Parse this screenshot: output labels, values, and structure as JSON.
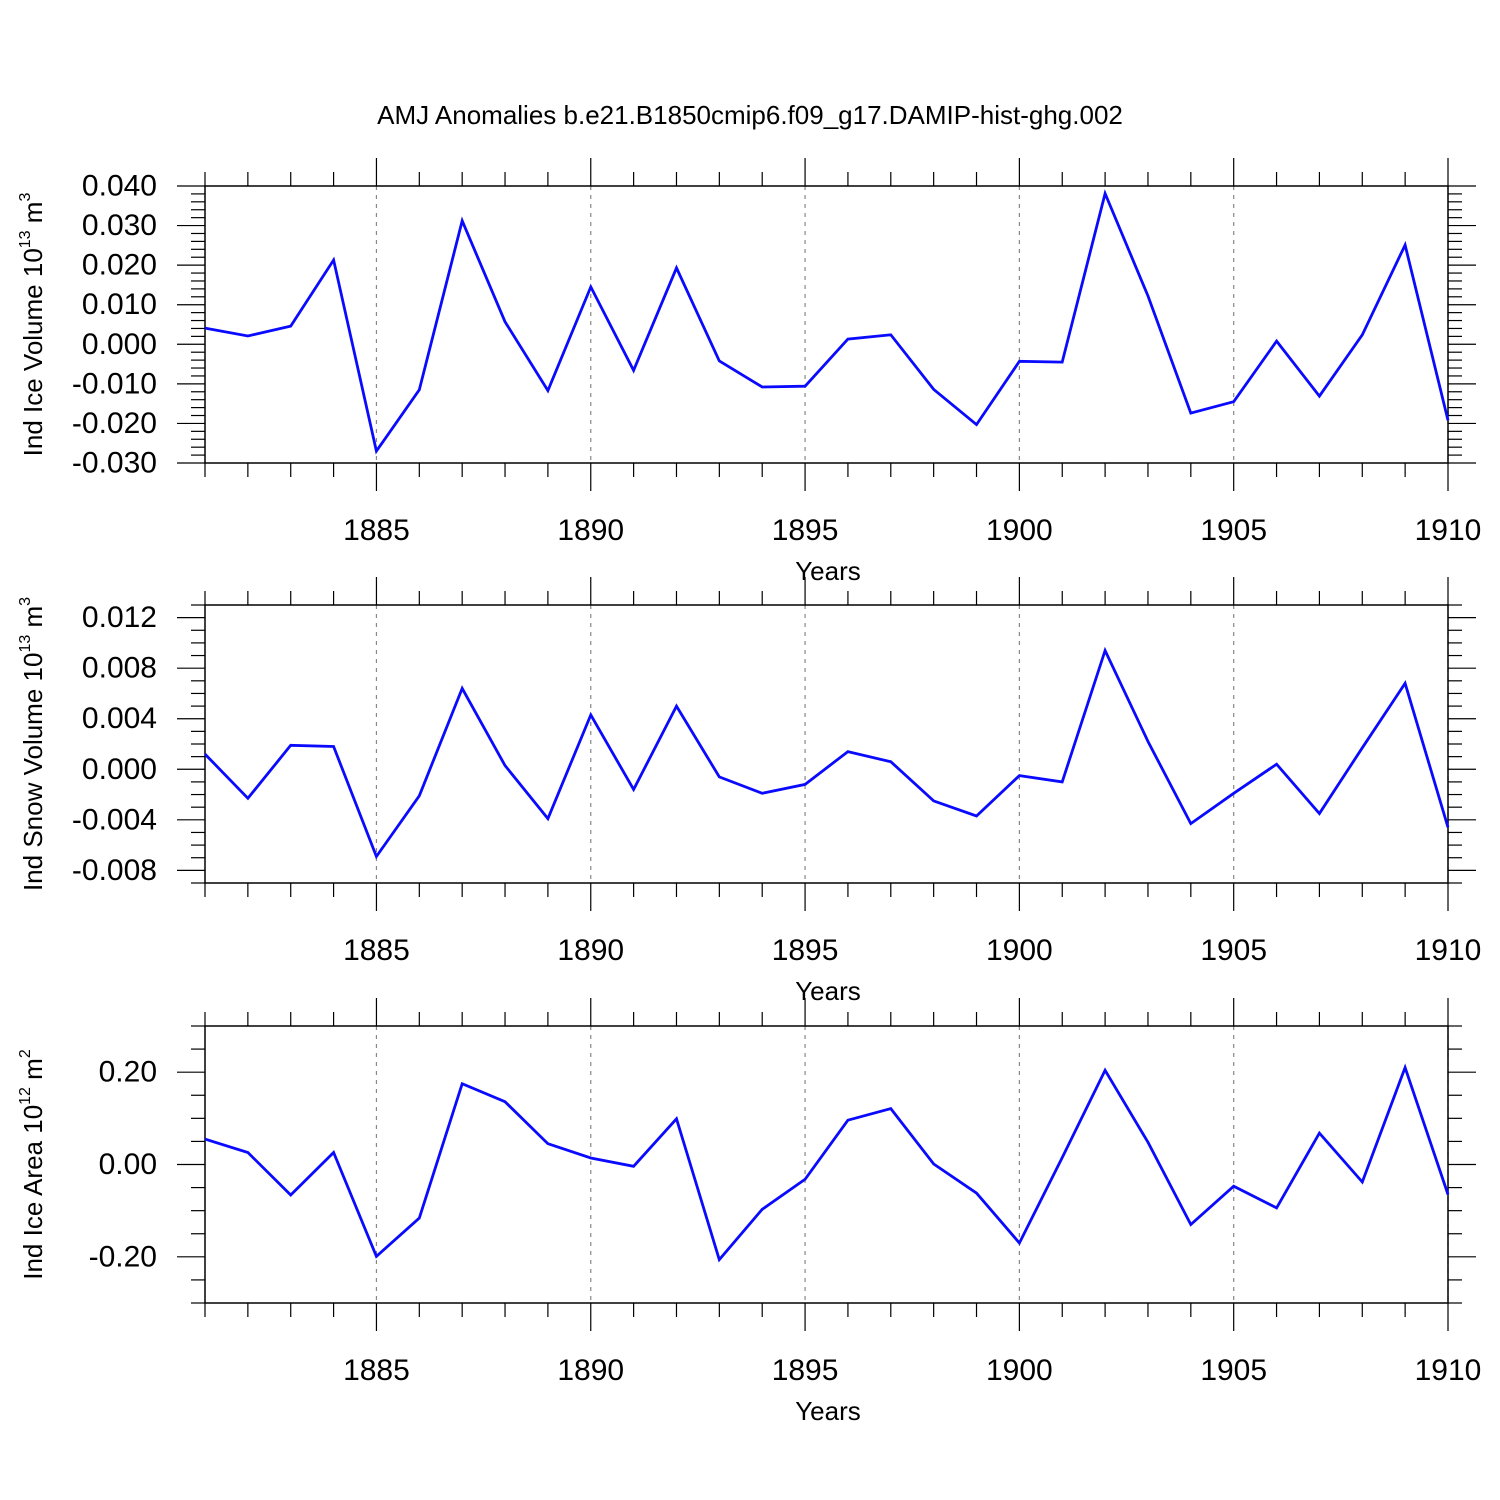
{
  "title": "AMJ Anomalies b.e21.B1850cmip6.f09_g17.DAMIP-hist-ghg.002",
  "colors": {
    "line": "#0a0aff",
    "axis": "#000000",
    "grid": "#888888"
  },
  "chart_data": [
    {
      "type": "line",
      "ylabel": {
        "prefix": "Ind Ice Volume 10",
        "exp": "13",
        "unit": " m",
        "unit_exp": "3"
      },
      "xlabel": "Years",
      "xlim": [
        1881,
        1910
      ],
      "ylim": [
        -0.03,
        0.04
      ],
      "yticks": [
        -0.03,
        -0.02,
        -0.01,
        0.0,
        0.01,
        0.02,
        0.03,
        0.04
      ],
      "ytick_labels": [
        "-0.030",
        "-0.020",
        "-0.010",
        "0.000",
        "0.010",
        "0.020",
        "0.030",
        "0.040"
      ],
      "yminor_step": 0.002,
      "xticks": [
        1885,
        1890,
        1895,
        1900,
        1905,
        1910
      ],
      "xtick_labels": [
        "1885",
        "1890",
        "1895",
        "1900",
        "1905",
        "1910"
      ],
      "x": [
        1881,
        1882,
        1883,
        1884,
        1885,
        1886,
        1887,
        1888,
        1889,
        1890,
        1891,
        1892,
        1893,
        1894,
        1895,
        1896,
        1897,
        1898,
        1899,
        1900,
        1901,
        1902,
        1903,
        1904,
        1905,
        1906,
        1907,
        1908,
        1909,
        1910
      ],
      "values": [
        0.0041,
        0.0021,
        0.0046,
        0.0213,
        -0.027,
        -0.0115,
        0.0312,
        0.0057,
        -0.0117,
        0.0145,
        -0.0066,
        0.0193,
        -0.0042,
        -0.0108,
        -0.0106,
        0.0013,
        0.0024,
        -0.0114,
        -0.0203,
        -0.0043,
        -0.0045,
        0.0381,
        0.0122,
        -0.0174,
        -0.0145,
        0.0008,
        -0.0131,
        0.0024,
        0.0251,
        -0.0192
      ]
    },
    {
      "type": "line",
      "ylabel": {
        "prefix": "Ind Snow Volume 10",
        "exp": "13",
        "unit": " m",
        "unit_exp": "3"
      },
      "xlabel": "Years",
      "xlim": [
        1881,
        1910
      ],
      "ylim": [
        -0.009,
        0.013
      ],
      "yticks": [
        -0.008,
        -0.004,
        0.0,
        0.004,
        0.008,
        0.012
      ],
      "ytick_labels": [
        "-0.008",
        "-0.004",
        "0.000",
        "0.004",
        "0.008",
        "0.012"
      ],
      "yminor_step": 0.001,
      "xticks": [
        1885,
        1890,
        1895,
        1900,
        1905,
        1910
      ],
      "xtick_labels": [
        "1885",
        "1890",
        "1895",
        "1900",
        "1905",
        "1910"
      ],
      "x": [
        1881,
        1882,
        1883,
        1884,
        1885,
        1886,
        1887,
        1888,
        1889,
        1890,
        1891,
        1892,
        1893,
        1894,
        1895,
        1896,
        1897,
        1898,
        1899,
        1900,
        1901,
        1902,
        1903,
        1904,
        1905,
        1906,
        1907,
        1908,
        1909,
        1910
      ],
      "values": [
        0.0012,
        -0.0023,
        0.0019,
        0.0018,
        -0.0069,
        -0.0021,
        0.0064,
        0.0003,
        -0.0039,
        0.0043,
        -0.0016,
        0.005,
        -0.0006,
        -0.0019,
        -0.0012,
        0.0014,
        0.0006,
        -0.0025,
        -0.0037,
        -0.0005,
        -0.001,
        0.0094,
        0.0022,
        -0.0043,
        -0.0019,
        0.0004,
        -0.0035,
        0.0017,
        0.0068,
        -0.0046
      ]
    },
    {
      "type": "line",
      "ylabel": {
        "prefix": "Ind Ice Area 10",
        "exp": "12",
        "unit": " m",
        "unit_exp": "2"
      },
      "xlabel": "Years",
      "xlim": [
        1881,
        1910
      ],
      "ylim": [
        -0.3,
        0.3
      ],
      "yticks": [
        -0.2,
        0.0,
        0.2
      ],
      "ytick_labels": [
        "-0.20",
        "0.00",
        "0.20"
      ],
      "yminor_step": 0.05,
      "xticks": [
        1885,
        1890,
        1895,
        1900,
        1905,
        1910
      ],
      "xtick_labels": [
        "1885",
        "1890",
        "1895",
        "1900",
        "1905",
        "1910"
      ],
      "x": [
        1881,
        1882,
        1883,
        1884,
        1885,
        1886,
        1887,
        1888,
        1889,
        1890,
        1891,
        1892,
        1893,
        1894,
        1895,
        1896,
        1897,
        1898,
        1899,
        1900,
        1901,
        1902,
        1903,
        1904,
        1905,
        1906,
        1907,
        1908,
        1909,
        1910
      ],
      "values": [
        0.055,
        0.026,
        -0.066,
        0.026,
        -0.199,
        -0.116,
        0.175,
        0.136,
        0.045,
        0.014,
        -0.004,
        0.099,
        -0.206,
        -0.097,
        -0.032,
        0.096,
        0.121,
        0.001,
        -0.062,
        -0.17,
        0.015,
        0.204,
        0.048,
        -0.13,
        -0.047,
        -0.094,
        0.068,
        -0.038,
        0.21,
        -0.065
      ]
    }
  ]
}
